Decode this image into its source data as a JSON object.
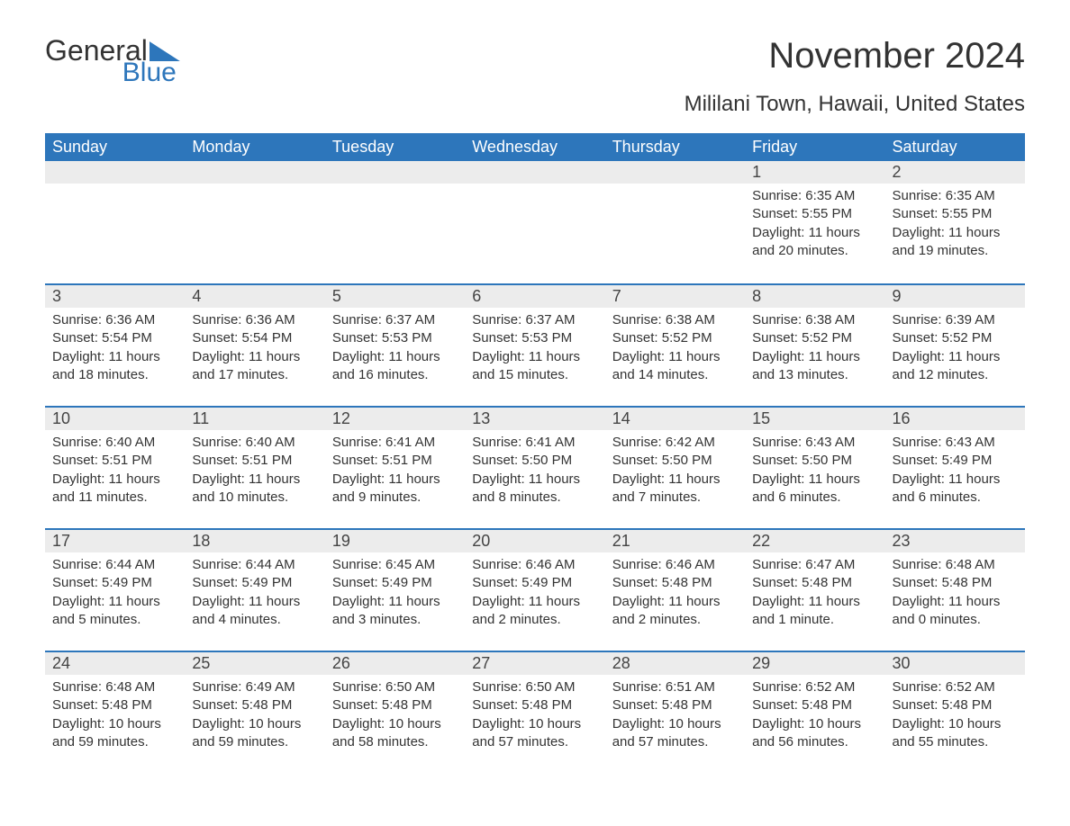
{
  "brand": {
    "word1": "General",
    "word2": "Blue"
  },
  "title": "November 2024",
  "subtitle": "Mililani Town, Hawaii, United States",
  "colors": {
    "accent": "#2d76bb",
    "header_text": "#ffffff",
    "daynum_bg": "#ececec",
    "body_text": "#333333",
    "page_bg": "#ffffff"
  },
  "typography": {
    "title_fontsize": 40,
    "subtitle_fontsize": 24,
    "dayheader_fontsize": 18,
    "daynum_fontsize": 18,
    "body_fontsize": 15
  },
  "day_headers": [
    "Sunday",
    "Monday",
    "Tuesday",
    "Wednesday",
    "Thursday",
    "Friday",
    "Saturday"
  ],
  "weeks": [
    [
      null,
      null,
      null,
      null,
      null,
      {
        "n": "1",
        "sunrise": "6:35 AM",
        "sunset": "5:55 PM",
        "daylight": "11 hours and 20 minutes."
      },
      {
        "n": "2",
        "sunrise": "6:35 AM",
        "sunset": "5:55 PM",
        "daylight": "11 hours and 19 minutes."
      }
    ],
    [
      {
        "n": "3",
        "sunrise": "6:36 AM",
        "sunset": "5:54 PM",
        "daylight": "11 hours and 18 minutes."
      },
      {
        "n": "4",
        "sunrise": "6:36 AM",
        "sunset": "5:54 PM",
        "daylight": "11 hours and 17 minutes."
      },
      {
        "n": "5",
        "sunrise": "6:37 AM",
        "sunset": "5:53 PM",
        "daylight": "11 hours and 16 minutes."
      },
      {
        "n": "6",
        "sunrise": "6:37 AM",
        "sunset": "5:53 PM",
        "daylight": "11 hours and 15 minutes."
      },
      {
        "n": "7",
        "sunrise": "6:38 AM",
        "sunset": "5:52 PM",
        "daylight": "11 hours and 14 minutes."
      },
      {
        "n": "8",
        "sunrise": "6:38 AM",
        "sunset": "5:52 PM",
        "daylight": "11 hours and 13 minutes."
      },
      {
        "n": "9",
        "sunrise": "6:39 AM",
        "sunset": "5:52 PM",
        "daylight": "11 hours and 12 minutes."
      }
    ],
    [
      {
        "n": "10",
        "sunrise": "6:40 AM",
        "sunset": "5:51 PM",
        "daylight": "11 hours and 11 minutes."
      },
      {
        "n": "11",
        "sunrise": "6:40 AM",
        "sunset": "5:51 PM",
        "daylight": "11 hours and 10 minutes."
      },
      {
        "n": "12",
        "sunrise": "6:41 AM",
        "sunset": "5:51 PM",
        "daylight": "11 hours and 9 minutes."
      },
      {
        "n": "13",
        "sunrise": "6:41 AM",
        "sunset": "5:50 PM",
        "daylight": "11 hours and 8 minutes."
      },
      {
        "n": "14",
        "sunrise": "6:42 AM",
        "sunset": "5:50 PM",
        "daylight": "11 hours and 7 minutes."
      },
      {
        "n": "15",
        "sunrise": "6:43 AM",
        "sunset": "5:50 PM",
        "daylight": "11 hours and 6 minutes."
      },
      {
        "n": "16",
        "sunrise": "6:43 AM",
        "sunset": "5:49 PM",
        "daylight": "11 hours and 6 minutes."
      }
    ],
    [
      {
        "n": "17",
        "sunrise": "6:44 AM",
        "sunset": "5:49 PM",
        "daylight": "11 hours and 5 minutes."
      },
      {
        "n": "18",
        "sunrise": "6:44 AM",
        "sunset": "5:49 PM",
        "daylight": "11 hours and 4 minutes."
      },
      {
        "n": "19",
        "sunrise": "6:45 AM",
        "sunset": "5:49 PM",
        "daylight": "11 hours and 3 minutes."
      },
      {
        "n": "20",
        "sunrise": "6:46 AM",
        "sunset": "5:49 PM",
        "daylight": "11 hours and 2 minutes."
      },
      {
        "n": "21",
        "sunrise": "6:46 AM",
        "sunset": "5:48 PM",
        "daylight": "11 hours and 2 minutes."
      },
      {
        "n": "22",
        "sunrise": "6:47 AM",
        "sunset": "5:48 PM",
        "daylight": "11 hours and 1 minute."
      },
      {
        "n": "23",
        "sunrise": "6:48 AM",
        "sunset": "5:48 PM",
        "daylight": "11 hours and 0 minutes."
      }
    ],
    [
      {
        "n": "24",
        "sunrise": "6:48 AM",
        "sunset": "5:48 PM",
        "daylight": "10 hours and 59 minutes."
      },
      {
        "n": "25",
        "sunrise": "6:49 AM",
        "sunset": "5:48 PM",
        "daylight": "10 hours and 59 minutes."
      },
      {
        "n": "26",
        "sunrise": "6:50 AM",
        "sunset": "5:48 PM",
        "daylight": "10 hours and 58 minutes."
      },
      {
        "n": "27",
        "sunrise": "6:50 AM",
        "sunset": "5:48 PM",
        "daylight": "10 hours and 57 minutes."
      },
      {
        "n": "28",
        "sunrise": "6:51 AM",
        "sunset": "5:48 PM",
        "daylight": "10 hours and 57 minutes."
      },
      {
        "n": "29",
        "sunrise": "6:52 AM",
        "sunset": "5:48 PM",
        "daylight": "10 hours and 56 minutes."
      },
      {
        "n": "30",
        "sunrise": "6:52 AM",
        "sunset": "5:48 PM",
        "daylight": "10 hours and 55 minutes."
      }
    ]
  ],
  "labels": {
    "sunrise": "Sunrise: ",
    "sunset": "Sunset: ",
    "daylight": "Daylight: "
  }
}
